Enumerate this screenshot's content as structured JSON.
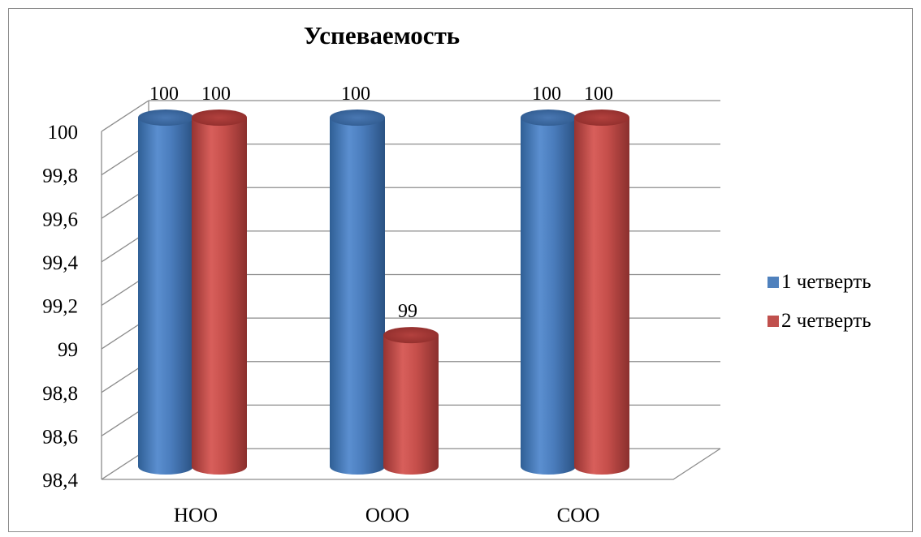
{
  "chart_data": {
    "type": "bar",
    "title": "Успеваемость",
    "categories": [
      "НОО",
      "ООО",
      "СОО"
    ],
    "series": [
      {
        "name": "1 четверть",
        "values": [
          100,
          100,
          100
        ],
        "color": "#4F81BD",
        "labels": [
          "100",
          "100",
          "100"
        ]
      },
      {
        "name": "2 четверть",
        "values": [
          100,
          99,
          100
        ],
        "color": "#C0504D",
        "labels": [
          "100",
          "99",
          "100"
        ]
      }
    ],
    "yticks": [
      "98,4",
      "98,6",
      "98,8",
      "99",
      "99,2",
      "99,4",
      "99,6",
      "99,8",
      "100"
    ],
    "ylim": [
      98.4,
      100
    ],
    "xlabel": "",
    "ylabel": "",
    "legend_position": "right",
    "grid": true,
    "style": "3d-cylinder"
  }
}
